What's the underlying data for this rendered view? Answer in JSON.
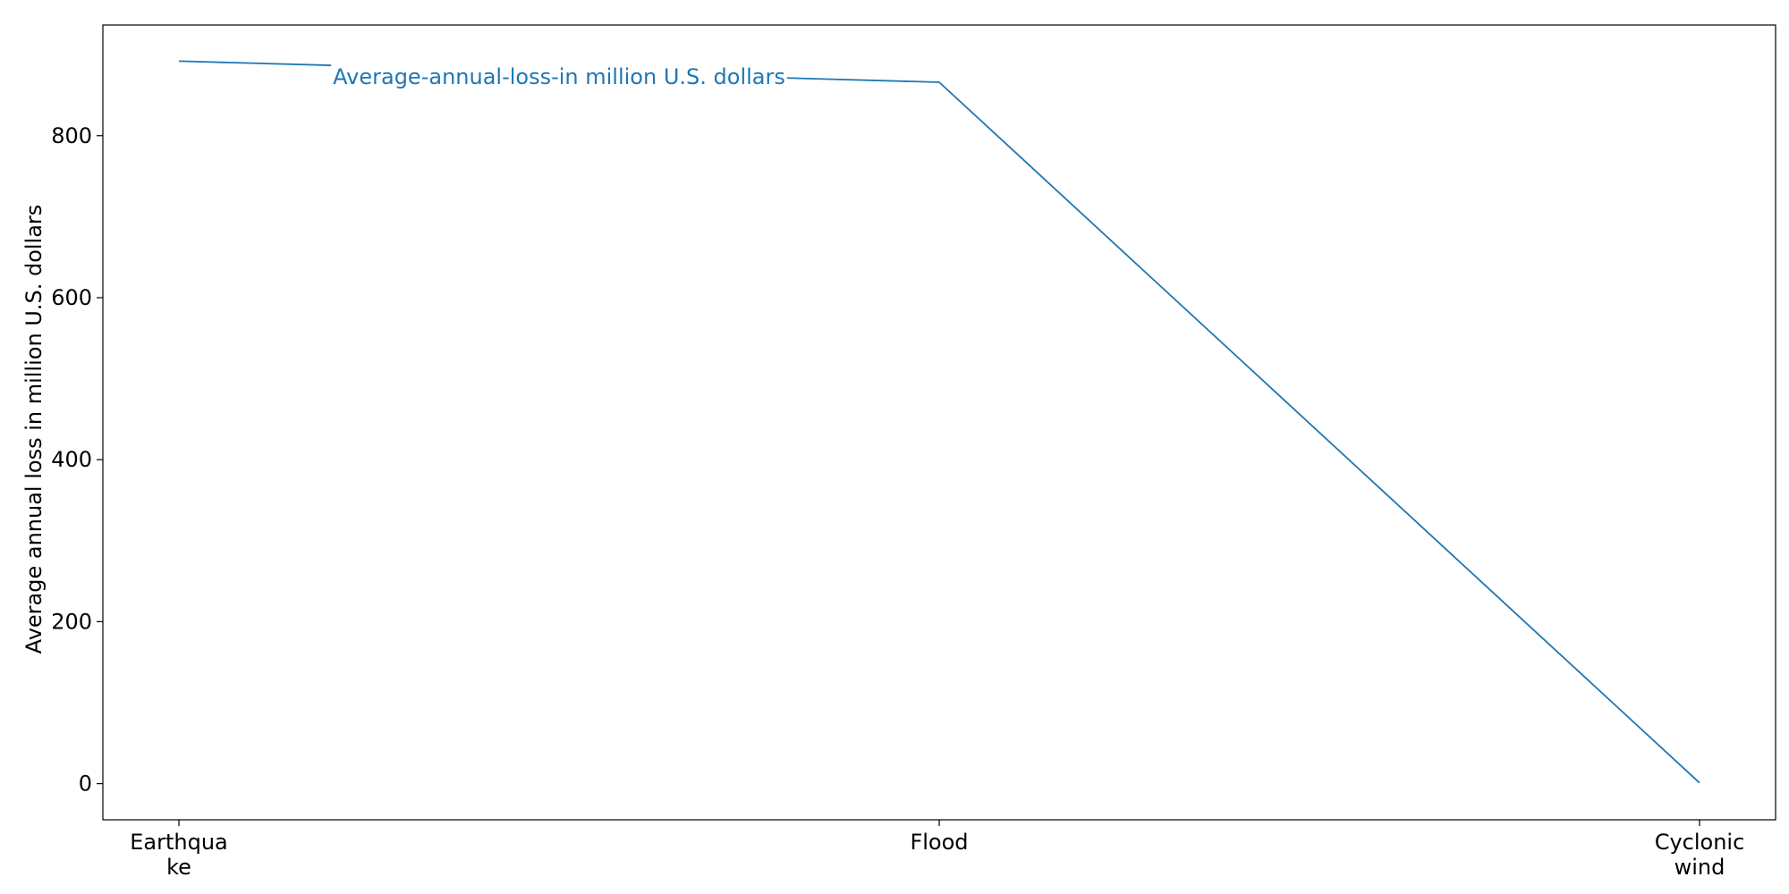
{
  "chart_data": {
    "type": "line",
    "categories": [
      "Earthquake",
      "Flood",
      "Cyclonic wind"
    ],
    "category_tick_labels": [
      [
        "Earthqua",
        "ke"
      ],
      [
        "Flood"
      ],
      [
        "Cyclonic",
        "wind"
      ]
    ],
    "series": [
      {
        "name": "Average-annual-loss-in million U.S. dollars",
        "values": [
          892,
          866,
          1
        ],
        "color": "#1f77b4"
      }
    ],
    "ylabel": "Average annual loss in million U.S. dollars",
    "xlabel": "",
    "ylim": [
      -44.6,
      936.6
    ],
    "yticks": [
      0,
      200,
      400,
      600,
      800
    ],
    "grid": false,
    "legend": "none"
  }
}
